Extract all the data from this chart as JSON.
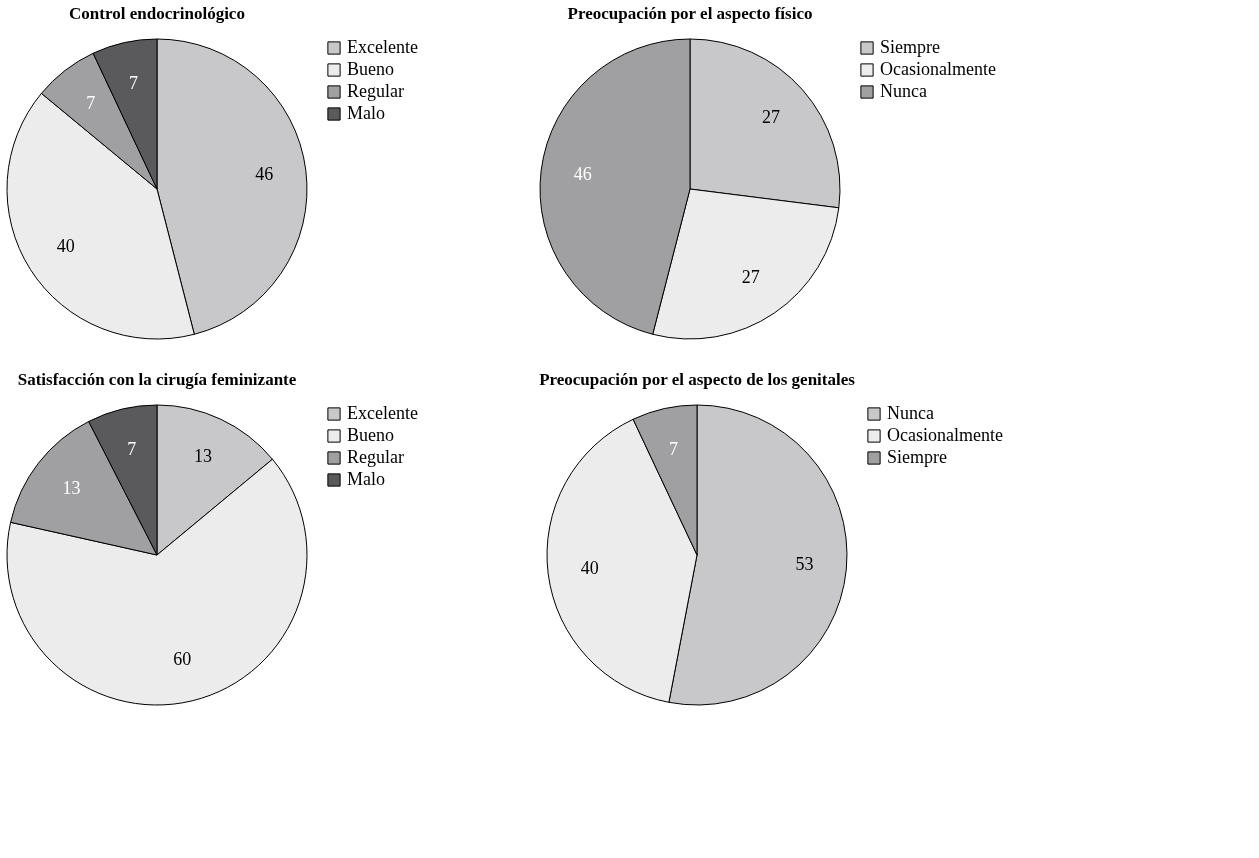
{
  "chart_data": [
    {
      "type": "pie",
      "title": "Control endocrinológico",
      "categories": [
        "Excelente",
        "Bueno",
        "Regular",
        "Malo"
      ],
      "values": [
        46,
        40,
        7,
        7
      ],
      "colors": [
        "#c8c8ca",
        "#ececec",
        "#a0a0a2",
        "#5a5a5c"
      ],
      "data_labels": true,
      "legend": "right"
    },
    {
      "type": "pie",
      "title": "Preocupación por el aspecto físico",
      "categories": [
        "Siempre",
        "Ocasionalmente",
        "Nunca"
      ],
      "values": [
        27,
        27,
        46
      ],
      "colors": [
        "#c8c8ca",
        "#ececec",
        "#a0a0a2"
      ],
      "data_labels": true,
      "legend": "right"
    },
    {
      "type": "pie",
      "title": "Satisfacción con la cirugía feminizante",
      "categories": [
        "Excelente",
        "Bueno",
        "Regular",
        "Malo"
      ],
      "values": [
        13,
        60,
        13,
        7
      ],
      "colors": [
        "#c8c8ca",
        "#ececec",
        "#a0a0a2",
        "#5a5a5c"
      ],
      "data_labels": true,
      "legend": "right"
    },
    {
      "type": "pie",
      "title": "Preocupación por el aspecto de los genitales",
      "categories": [
        "Nunca",
        "Ocasionalmente",
        "Siempre"
      ],
      "values": [
        53,
        40,
        7
      ],
      "colors": [
        "#c8c8ca",
        "#ececec",
        "#a0a0a2"
      ],
      "data_labels": true,
      "legend": "right"
    }
  ]
}
